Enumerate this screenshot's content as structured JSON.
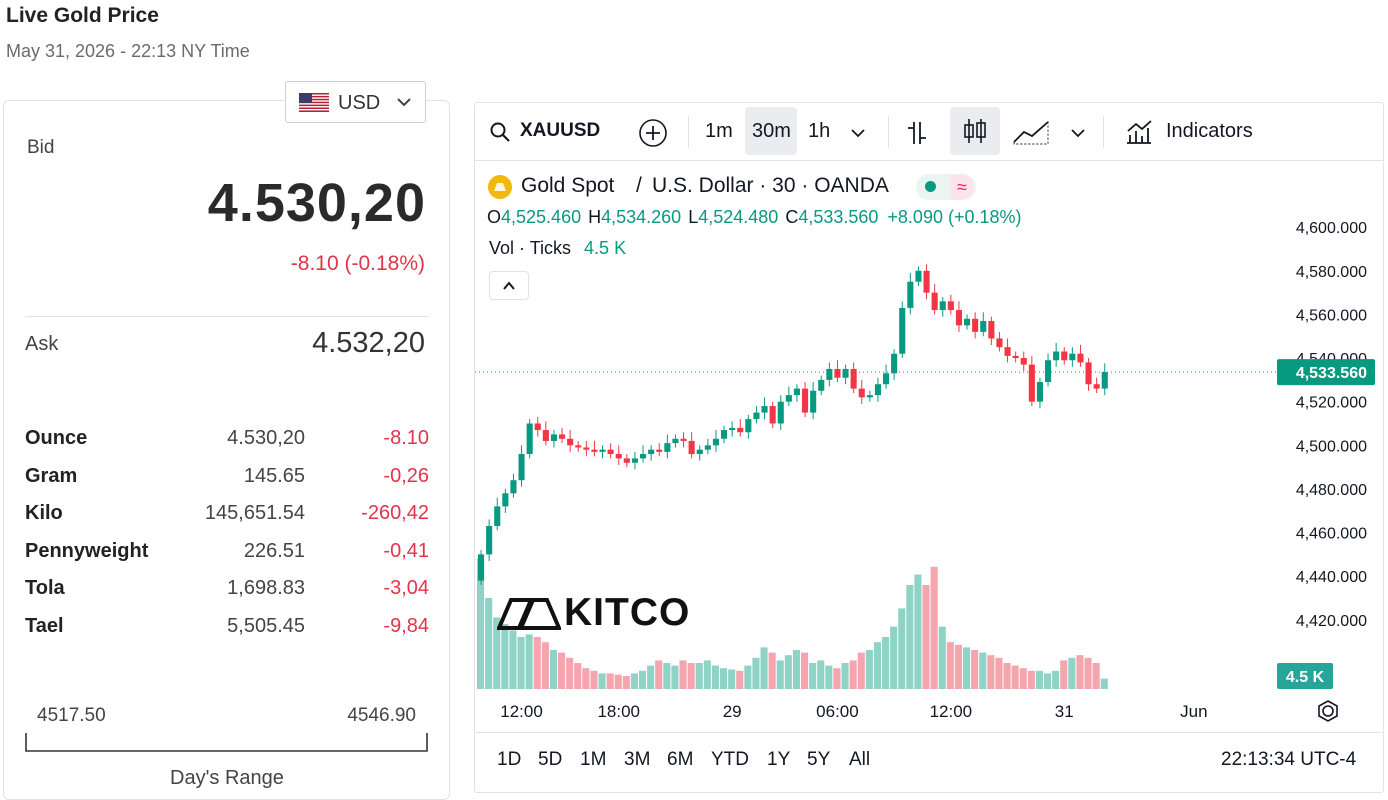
{
  "header": {
    "title": "Live Gold Price",
    "subtitle": "May 31, 2026 - 22:13 NY Time"
  },
  "currency": {
    "selected": "USD",
    "flag_icon": "us-flag-icon"
  },
  "quote": {
    "bid_label": "Bid",
    "bid_value": "4.530,20",
    "bid_change": "-8.10 (-0.18%)",
    "ask_label": "Ask",
    "ask_value": "4.532,20",
    "down_color": "#e0354a"
  },
  "units": [
    {
      "name": "Ounce",
      "price": "4.530,20",
      "change": "-8.10"
    },
    {
      "name": "Gram",
      "price": "145.65",
      "change": "-0,26"
    },
    {
      "name": "Kilo",
      "price": "145,651.54",
      "change": "-260,42"
    },
    {
      "name": "Pennyweight",
      "price": "226.51",
      "change": "-0,41"
    },
    {
      "name": "Tola",
      "price": "1,698.83",
      "change": "-3,04"
    },
    {
      "name": "Tael",
      "price": "5,505.45",
      "change": "-9,84"
    }
  ],
  "range": {
    "low": "4517.50",
    "high": "4546.90",
    "label": "Day's Range"
  },
  "toolbar": {
    "symbol": "XAUUSD",
    "intervals": [
      "1m",
      "30m",
      "1h"
    ],
    "selected_interval": "30m",
    "indicators_label": "Indicators"
  },
  "legend": {
    "title": "Gold Spot",
    "slash": "/",
    "title2": "U.S. Dollar · 30 · OANDA",
    "o_label": "O",
    "o_val": "4,525.460",
    "h_label": "H",
    "h_val": "4,534.260",
    "l_label": "L",
    "l_val": "4,524.480",
    "c_label": "C",
    "c_val": "4,533.560",
    "change": "+8.090 (+0.18%)",
    "vol_label": "Vol · Ticks",
    "vol_val": "4.5 K"
  },
  "watermark": "KITCO",
  "bottom": {
    "ranges": [
      "1D",
      "5D",
      "1M",
      "3M",
      "6M",
      "YTD",
      "1Y",
      "5Y",
      "All"
    ],
    "clock": "22:13:34 UTC-4"
  },
  "chart_data": {
    "type": "candlestick",
    "symbol": "XAUUSD",
    "interval": "30m",
    "price_axis_ticks": [
      "4,600.000",
      "4,580.000",
      "4,560.000",
      "4,540.000",
      "4,520.000",
      "4,500.000",
      "4,480.000",
      "4,460.000",
      "4,440.000",
      "4,420.000"
    ],
    "price_axis_values": [
      4600,
      4580,
      4560,
      4540,
      4520,
      4500,
      4480,
      4460,
      4440,
      4420
    ],
    "ylim": [
      4408,
      4612
    ],
    "last_price_label": "4,533.560",
    "last_price": 4533.56,
    "volume_label": "4.5 K",
    "time_ticks": [
      "12:00",
      "18:00",
      "29",
      "06:00",
      "12:00",
      "31",
      "Jun"
    ],
    "time_tick_candle_index": [
      5,
      17,
      31,
      44,
      58,
      72,
      88
    ],
    "up_color": "#089981",
    "down_color": "#f23645",
    "close": [
      4450,
      4463,
      4472,
      4478,
      4484,
      4496,
      4510,
      4507,
      4502,
      4505,
      4503,
      4500,
      4499,
      4498,
      4497,
      4498,
      4496,
      4494,
      4492,
      4494,
      4496,
      4498,
      4497,
      4501,
      4503,
      4502,
      4496,
      4498,
      4500,
      4503,
      4507,
      4508,
      4506,
      4512,
      4515,
      4518,
      4510,
      4520,
      4523,
      4526,
      4515,
      4525,
      4530,
      4535,
      4531,
      4535,
      4526,
      4522,
      4523,
      4528,
      4533,
      4542,
      4563,
      4575,
      4580,
      4570,
      4562,
      4566,
      4562,
      4555,
      4558,
      4552,
      4557,
      4549,
      4545,
      4541,
      4540,
      4537,
      4520,
      4529,
      4539,
      4543,
      4539,
      4542,
      4538,
      4528,
      4526,
      4533.56
    ],
    "volume_pct": [
      1.0,
      0.7,
      0.55,
      0.5,
      0.45,
      0.4,
      0.42,
      0.4,
      0.36,
      0.3,
      0.28,
      0.24,
      0.2,
      0.16,
      0.14,
      0.12,
      0.12,
      0.11,
      0.1,
      0.12,
      0.14,
      0.18,
      0.22,
      0.2,
      0.18,
      0.22,
      0.2,
      0.2,
      0.22,
      0.18,
      0.16,
      0.15,
      0.14,
      0.18,
      0.24,
      0.32,
      0.28,
      0.22,
      0.26,
      0.3,
      0.28,
      0.2,
      0.22,
      0.18,
      0.16,
      0.2,
      0.22,
      0.28,
      0.3,
      0.36,
      0.4,
      0.48,
      0.62,
      0.8,
      0.88,
      0.8,
      0.94,
      0.48,
      0.36,
      0.34,
      0.32,
      0.3,
      0.28,
      0.26,
      0.24,
      0.2,
      0.18,
      0.16,
      0.14,
      0.14,
      0.12,
      0.14,
      0.22,
      0.24,
      0.26,
      0.24,
      0.2,
      0.08
    ]
  }
}
